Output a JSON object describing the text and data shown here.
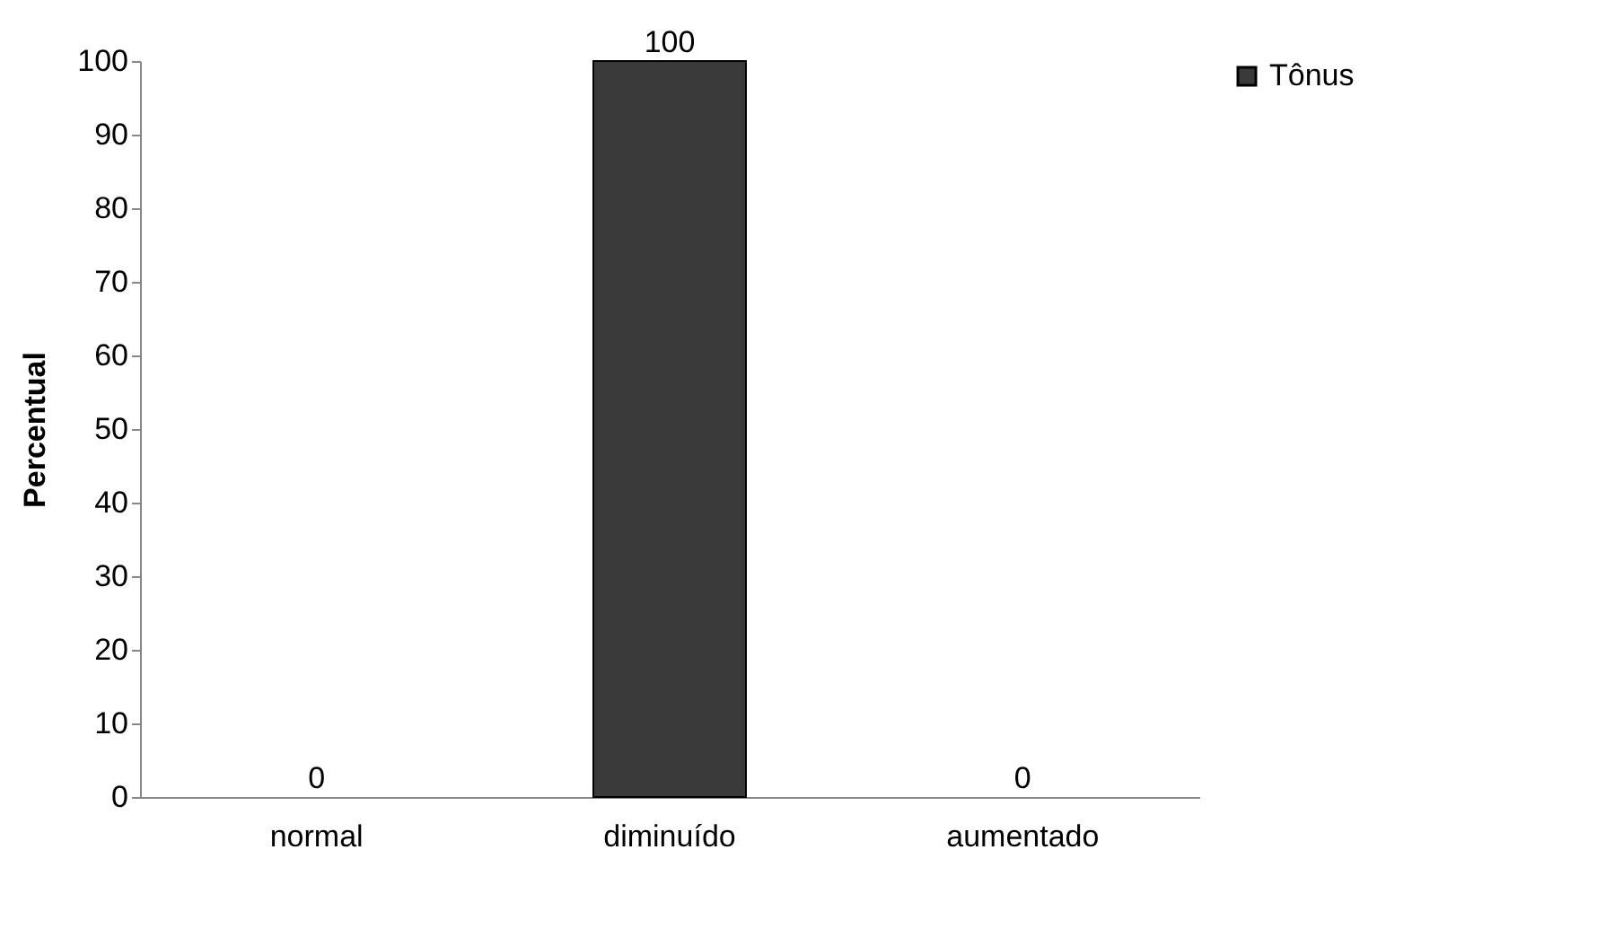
{
  "chart_data": {
    "type": "bar",
    "ylabel": "Percentual",
    "categories": [
      "normal",
      "diminuído",
      "aumentado"
    ],
    "series": [
      {
        "name": "Tônus",
        "color": "#3a3a3a",
        "values": [
          0,
          100,
          0
        ]
      }
    ],
    "ylim": [
      0,
      100
    ],
    "yticks": [
      0,
      10,
      20,
      30,
      40,
      50,
      60,
      70,
      80,
      90,
      100
    ],
    "grid": false,
    "legend": "right",
    "data_labels": true
  }
}
